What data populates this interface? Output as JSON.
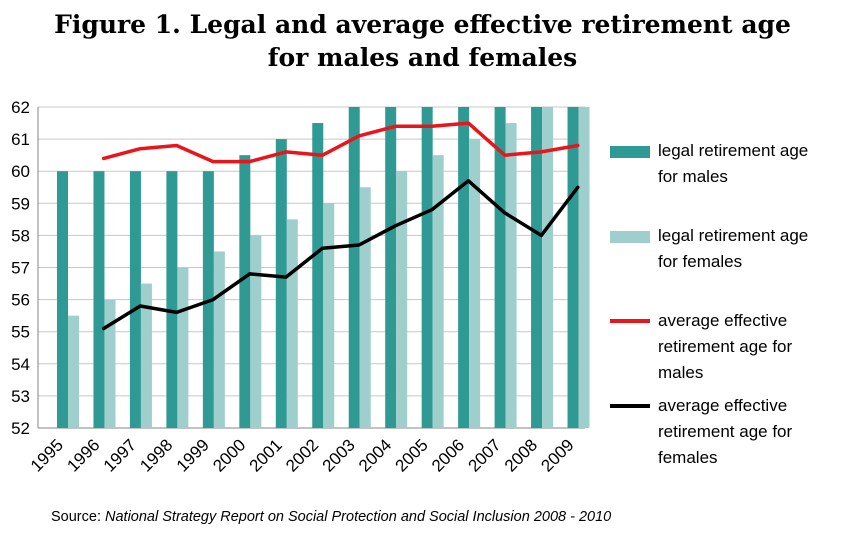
{
  "title_lines": [
    "Figure 1. Legal and average effective retirement age",
    "for males and females"
  ],
  "source": {
    "label": "Source:",
    "text": "National Strategy Report on Social Protection and Social Inclusion 2008 - 2010"
  },
  "colors": {
    "legal_male": "#2e9a93",
    "legal_female": "#9fcfcd",
    "avg_male": "#e8161b",
    "avg_female": "#000000",
    "grid": "#c8c8c8"
  },
  "chart_data": {
    "type": "bar",
    "categories": [
      "1995",
      "1996",
      "1997",
      "1998",
      "1999",
      "2000",
      "2001",
      "2002",
      "2003",
      "2004",
      "2005",
      "2006",
      "2007",
      "2008",
      "2009"
    ],
    "ylim": [
      52,
      62
    ],
    "yticks": [
      52,
      53,
      54,
      55,
      56,
      57,
      58,
      59,
      60,
      61,
      62
    ],
    "grid": true,
    "legend_position": "right",
    "series": [
      {
        "name": "legal retirement age\nfor males",
        "kind": "bar",
        "color_key": "legal_male",
        "values": [
          60,
          60,
          60,
          60,
          60,
          60.5,
          61,
          61.5,
          62,
          62,
          62,
          62,
          62,
          62,
          62
        ]
      },
      {
        "name": "legal retirement age\nfor females",
        "kind": "bar",
        "color_key": "legal_female",
        "values": [
          55.5,
          56,
          56.5,
          57,
          57.5,
          58,
          58.5,
          59,
          59.5,
          60,
          60.5,
          61,
          61.5,
          62,
          62
        ]
      },
      {
        "name": "average effective\nretirement age for\nmales",
        "kind": "line",
        "color_key": "avg_male",
        "values": [
          null,
          60.4,
          60.7,
          60.8,
          60.3,
          60.3,
          60.6,
          60.5,
          61.1,
          61.4,
          61.4,
          61.5,
          60.5,
          60.6,
          60.8
        ]
      },
      {
        "name": "average effective\nretirement age for\nfemales",
        "kind": "line",
        "color_key": "avg_female",
        "values": [
          null,
          55.1,
          55.8,
          55.6,
          56.0,
          56.8,
          56.7,
          57.6,
          57.7,
          58.3,
          58.8,
          59.7,
          58.7,
          58.0,
          59.5
        ]
      }
    ]
  }
}
